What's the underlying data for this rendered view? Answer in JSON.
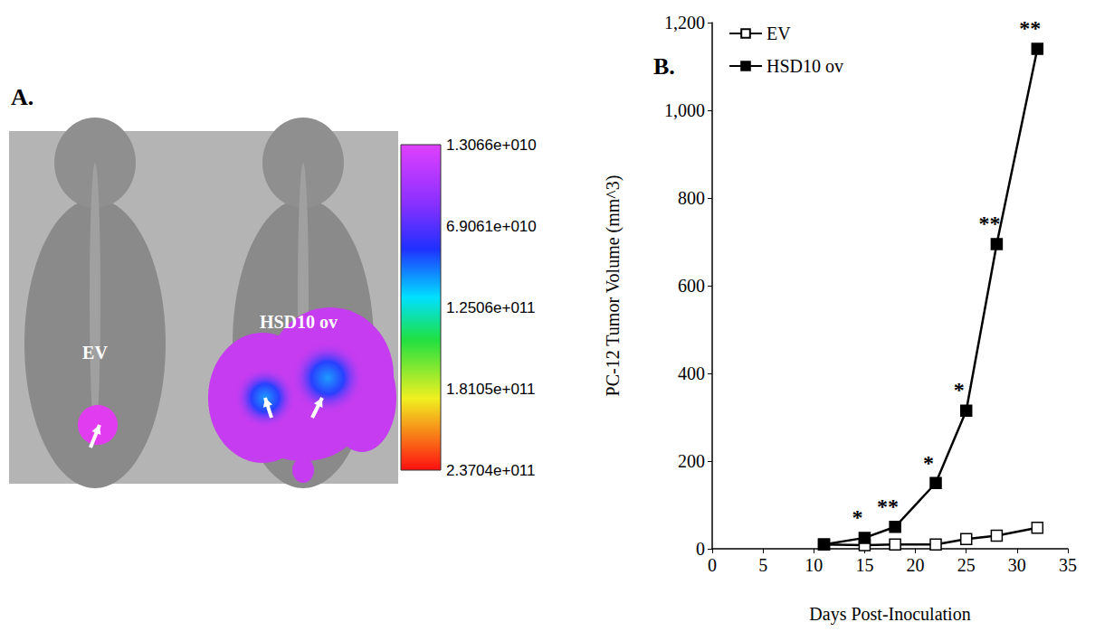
{
  "chart_data": {
    "type": "line",
    "panel_label": "B.",
    "x_label": "Days Post-Inoculation",
    "y_label": "PC-12 Tumor Volume (mm^3)",
    "xlim": [
      0,
      35
    ],
    "xticks": [
      0,
      5,
      10,
      15,
      20,
      25,
      30,
      35
    ],
    "ylim": [
      0,
      1200
    ],
    "yticks": [
      0,
      200,
      400,
      600,
      800,
      1000,
      1200
    ],
    "grid": false,
    "legend": "upper left",
    "series": [
      {
        "name": "EV",
        "color": "#000000",
        "marker": "square-open",
        "x": [
          11,
          15,
          18,
          22,
          25,
          28,
          32
        ],
        "values": [
          10,
          8,
          10,
          10,
          22,
          30,
          48
        ]
      },
      {
        "name": "HSD10 ov",
        "color": "#000000",
        "marker": "square",
        "x": [
          11,
          15,
          18,
          22,
          25,
          28,
          32
        ],
        "values": [
          10,
          25,
          50,
          150,
          315,
          695,
          1140
        ],
        "significance": [
          null,
          "*",
          "**",
          "*",
          "*",
          "**",
          "**"
        ]
      }
    ]
  },
  "image_panel": {
    "panel_label": "A.",
    "labels": [
      "EV",
      "HSD10 ov"
    ],
    "colorbar": {
      "range": [
        13066000000,
        237040000000
      ],
      "ticks": [
        {
          "value": 13066000000,
          "label": "1.3066e+010"
        },
        {
          "value": 69061000000,
          "label": "6.9061e+010"
        },
        {
          "value": 125060000000,
          "label": "1.2506e+011"
        },
        {
          "value": 181050000000,
          "label": "1.8105e+011"
        },
        {
          "value": 237040000000,
          "label": "2.3704e+011"
        }
      ]
    }
  }
}
